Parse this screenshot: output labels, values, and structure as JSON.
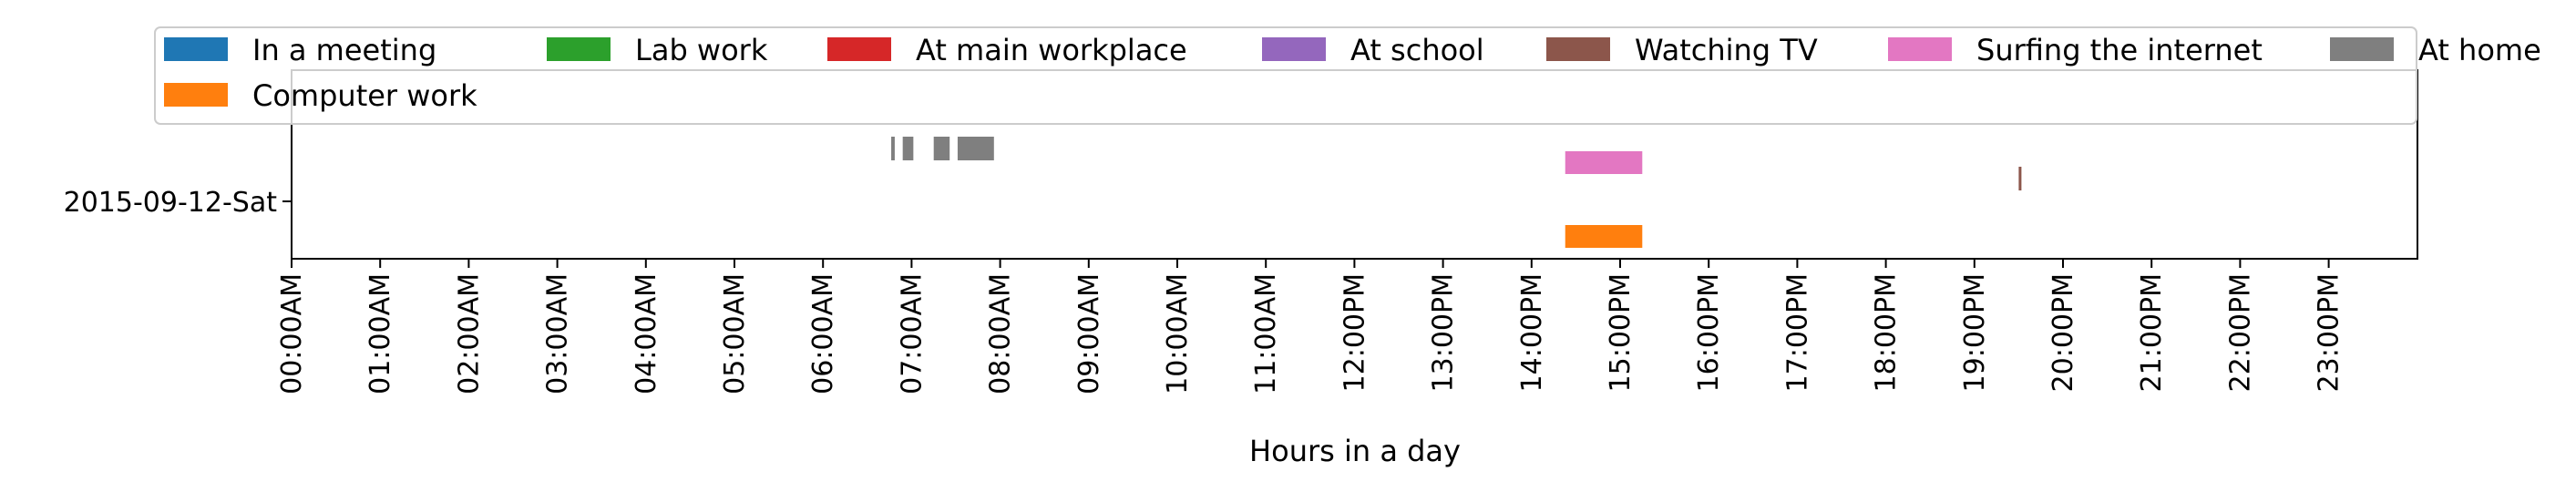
{
  "chart_data": {
    "type": "timeline",
    "xlabel": "Hours in a day",
    "ylabel": "",
    "xlim": [
      0,
      24
    ],
    "x_ticks": [
      "00:00AM",
      "01:00AM",
      "02:00AM",
      "03:00AM",
      "04:00AM",
      "05:00AM",
      "06:00AM",
      "07:00AM",
      "08:00AM",
      "09:00AM",
      "10:00AM",
      "11:00AM",
      "12:00PM",
      "13:00PM",
      "14:00PM",
      "15:00PM",
      "16:00PM",
      "17:00PM",
      "18:00PM",
      "19:00PM",
      "20:00PM",
      "21:00PM",
      "22:00PM",
      "23:00PM"
    ],
    "y_categories": [
      "2015-09-12-Sat"
    ],
    "legend_position": "top",
    "legend": [
      {
        "name": "In a meeting",
        "color": "#1f77b4"
      },
      {
        "name": "Lab work",
        "color": "#2ca02c"
      },
      {
        "name": "At main workplace",
        "color": "#d62728"
      },
      {
        "name": "At school",
        "color": "#9467bd"
      },
      {
        "name": "Watching TV",
        "color": "#8c564b"
      },
      {
        "name": "Surfing the internet",
        "color": "#e377c2"
      },
      {
        "name": "At home",
        "color": "#7f7f7f"
      },
      {
        "name": "Computer work",
        "color": "#ff7f0e"
      }
    ],
    "series": [
      {
        "name": "At home",
        "row": 0,
        "intervals": [
          [
            6.77,
            6.81
          ],
          [
            6.9,
            7.02
          ],
          [
            7.25,
            7.43
          ],
          [
            7.52,
            7.93
          ]
        ]
      },
      {
        "name": "Surfing the internet",
        "row": 0,
        "intervals": [
          [
            14.38,
            15.25
          ]
        ]
      },
      {
        "name": "Watching TV",
        "row": 0,
        "intervals": [
          [
            19.5,
            19.53
          ]
        ]
      },
      {
        "name": "Computer work",
        "row": 0,
        "intervals": [
          [
            14.38,
            15.25
          ]
        ]
      }
    ]
  }
}
